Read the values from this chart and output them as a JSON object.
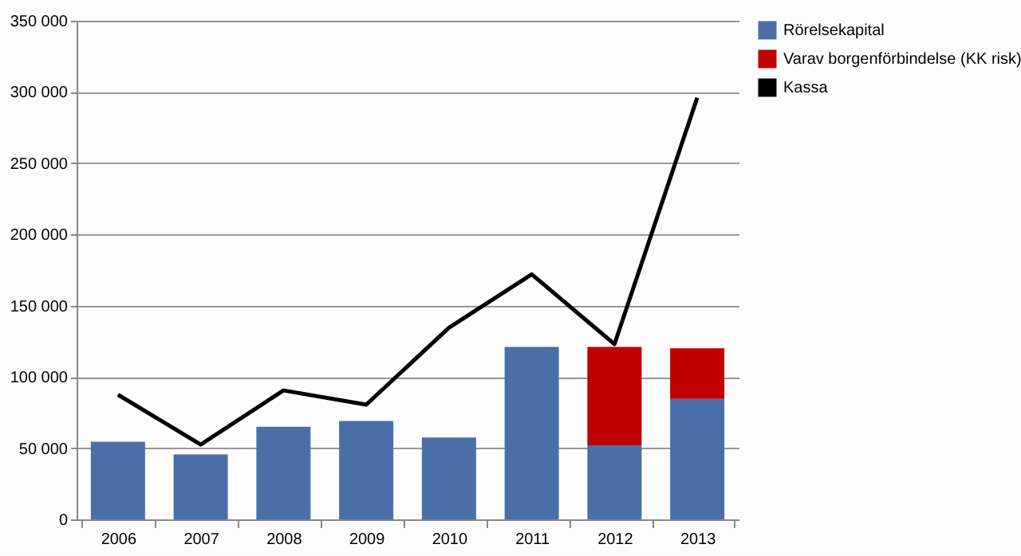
{
  "chart_data": {
    "type": "bar",
    "categories": [
      "2006",
      "2007",
      "2008",
      "2009",
      "2010",
      "2011",
      "2012",
      "2013"
    ],
    "series": [
      {
        "name": "Rörelsekapital",
        "color": "#4a6fa8",
        "values": [
          54500,
          45500,
          65000,
          69000,
          57500,
          121000,
          52000,
          84500
        ]
      },
      {
        "name": "Varav borgenförbindelse (KK risk)",
        "color": "#c00000",
        "values": [
          null,
          null,
          null,
          null,
          null,
          null,
          69000,
          35500
        ]
      },
      {
        "name": "Kassa",
        "type": "line",
        "color": "#000000",
        "values": [
          87500,
          52500,
          90500,
          80500,
          134500,
          172000,
          123000,
          296000
        ]
      }
    ],
    "stacked": true,
    "ylim": [
      0,
      350000
    ],
    "yticks": [
      {
        "value": 0,
        "label": "0"
      },
      {
        "value": 50000,
        "label": "50 000"
      },
      {
        "value": 100000,
        "label": "100 000"
      },
      {
        "value": 150000,
        "label": "150 000"
      },
      {
        "value": 200000,
        "label": "200 000"
      },
      {
        "value": 250000,
        "label": "250 000"
      },
      {
        "value": 300000,
        "label": "300 000"
      },
      {
        "value": 350000,
        "label": "350 000"
      }
    ],
    "grid": "y",
    "legend": "right"
  }
}
